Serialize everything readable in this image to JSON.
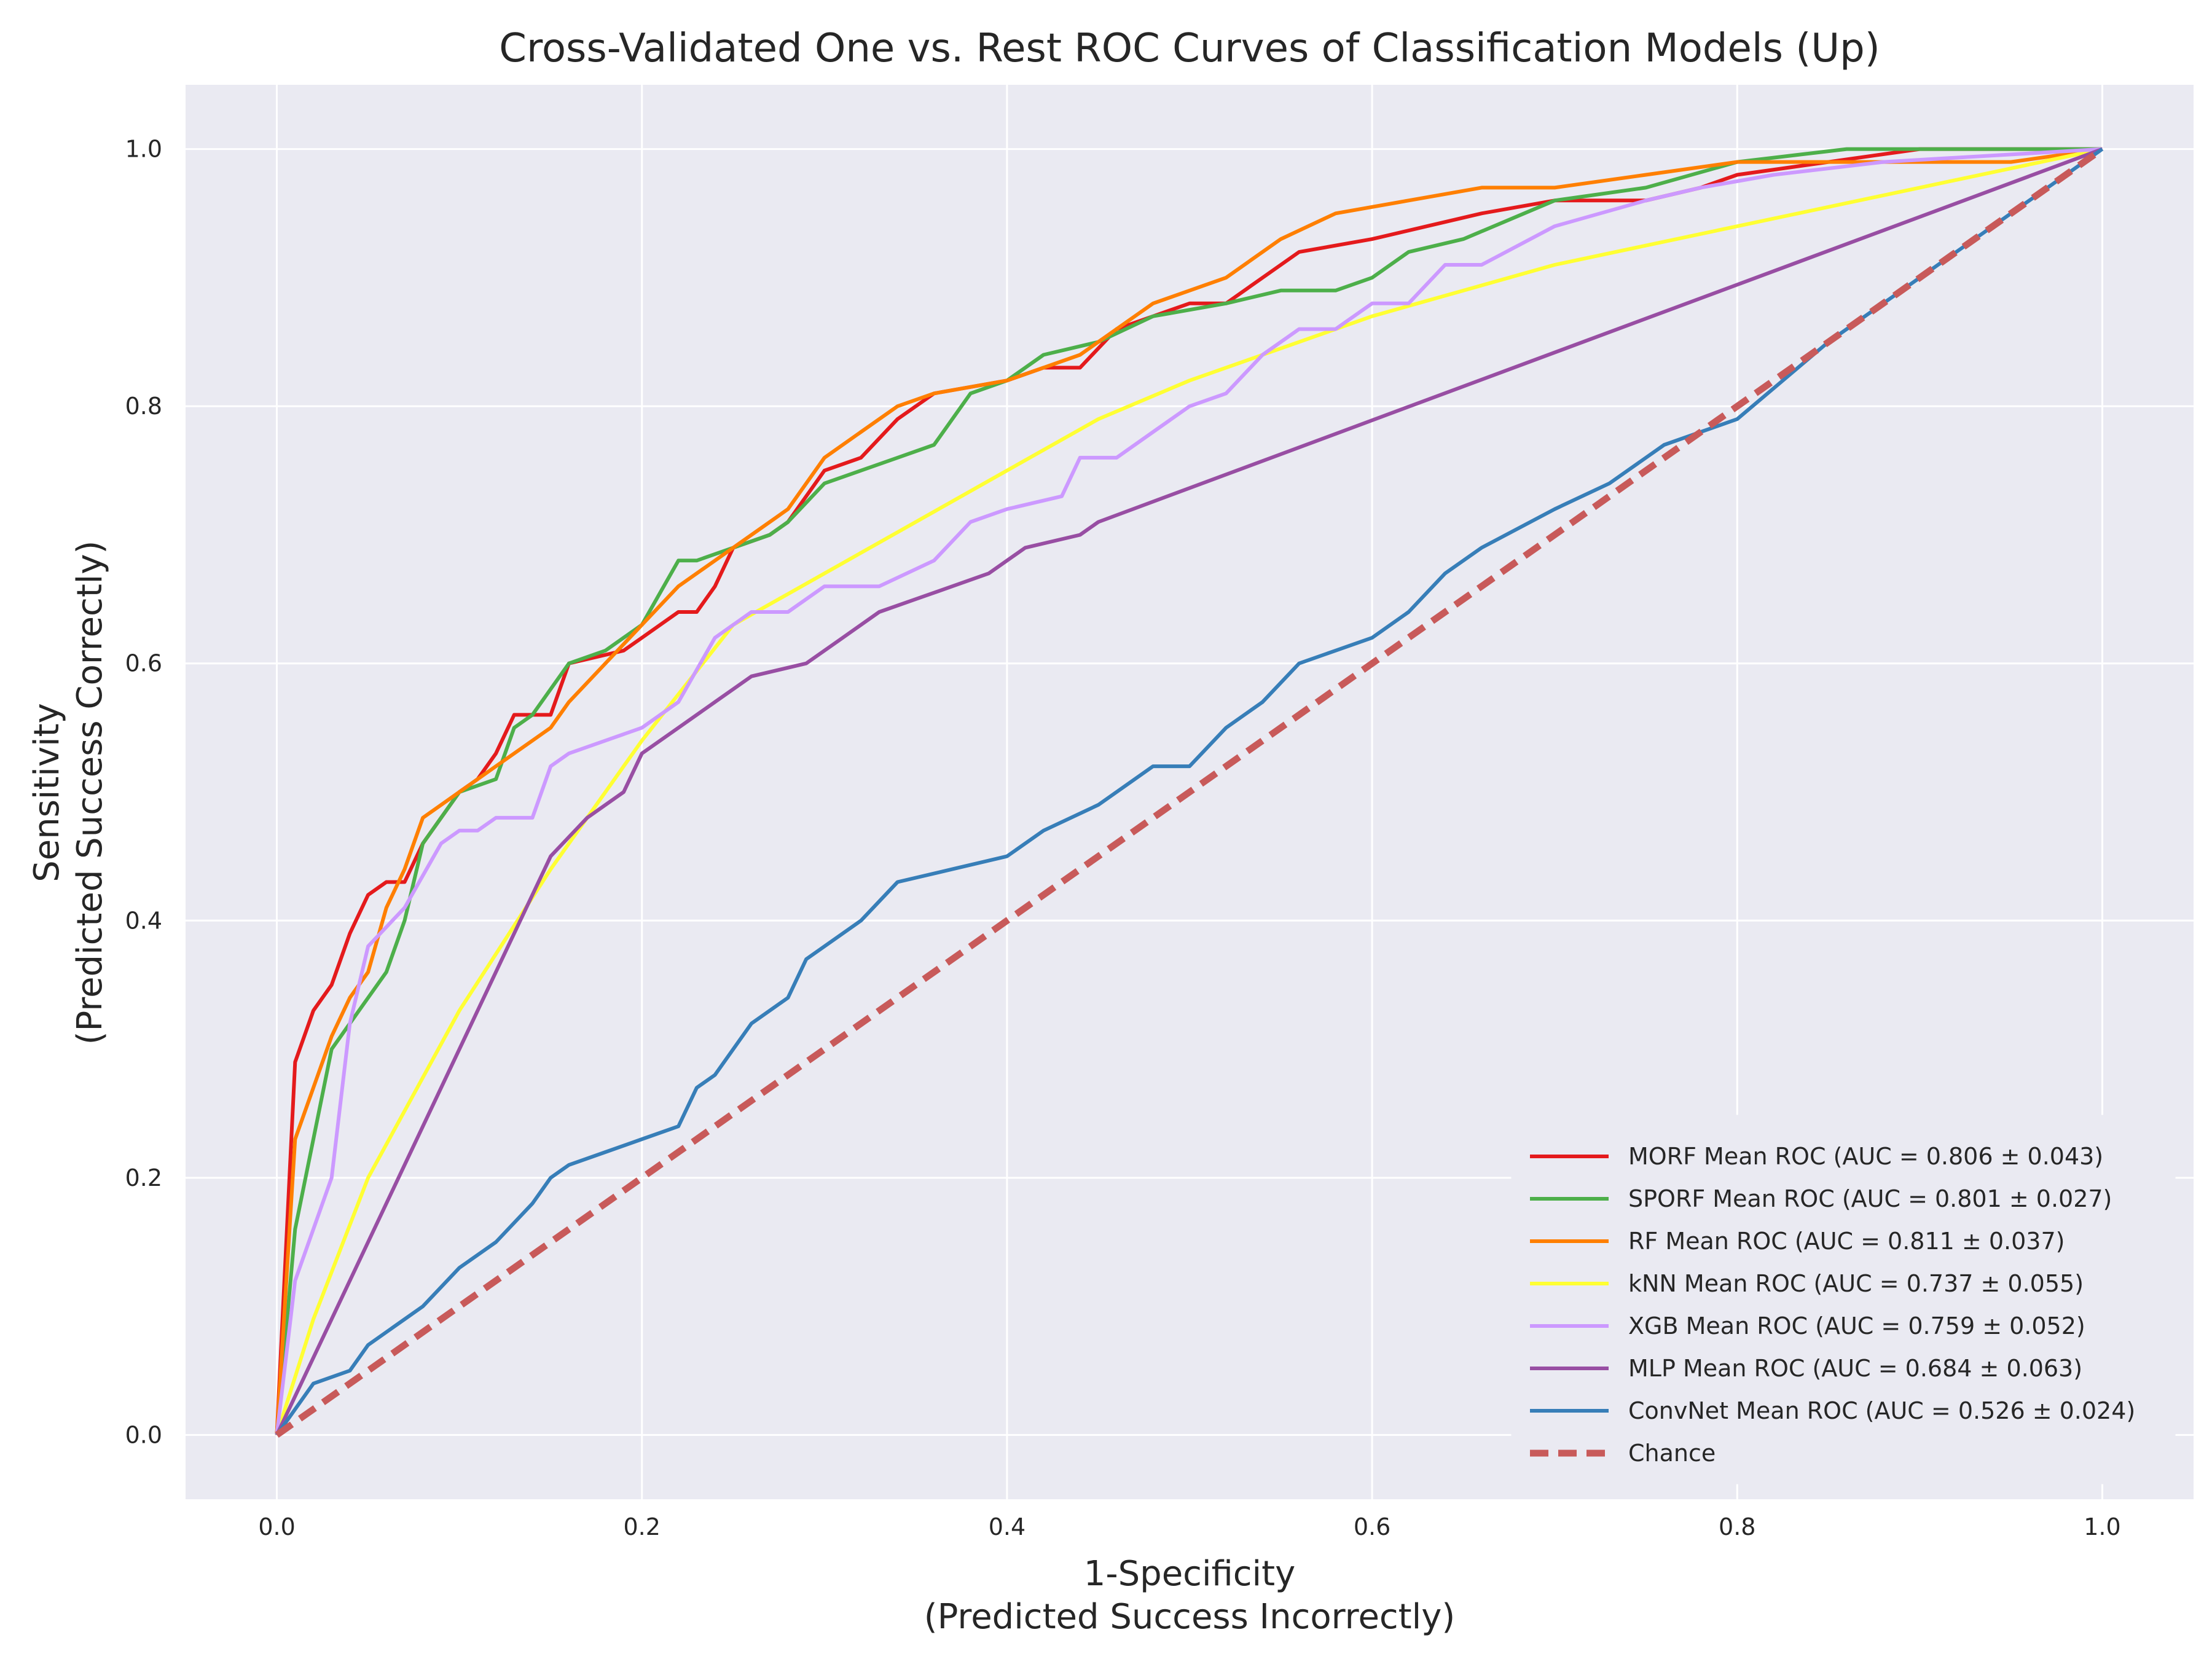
{
  "chart_data": {
    "type": "line",
    "title": "Cross-Validated One vs. Rest ROC Curves of Classification Models (Up)",
    "xlabel": [
      "1-Specificity",
      "(Predicted Success Incorrectly)"
    ],
    "ylabel": [
      "Sensitivity",
      "(Predicted Success Correctly)"
    ],
    "xlim": [
      -0.05,
      1.05
    ],
    "ylim": [
      -0.05,
      1.05
    ],
    "xticks": [
      "0.0",
      "0.2",
      "0.4",
      "0.6",
      "0.8",
      "1.0"
    ],
    "yticks": [
      "0.0",
      "0.2",
      "0.4",
      "0.6",
      "0.8",
      "1.0"
    ],
    "grid": true,
    "legend_position": "lower-right",
    "series": [
      {
        "name": "MORF Mean ROC (AUC = 0.806 ± 0.043)",
        "color": "#e41a1c",
        "x": [
          0,
          0.01,
          0.02,
          0.03,
          0.04,
          0.05,
          0.06,
          0.07,
          0.08,
          0.09,
          0.1,
          0.11,
          0.12,
          0.13,
          0.15,
          0.16,
          0.19,
          0.2,
          0.22,
          0.23,
          0.24,
          0.25,
          0.27,
          0.28,
          0.3,
          0.32,
          0.34,
          0.36,
          0.4,
          0.42,
          0.44,
          0.46,
          0.5,
          0.52,
          0.54,
          0.56,
          0.6,
          0.63,
          0.66,
          0.7,
          0.75,
          0.78,
          0.8,
          0.85,
          0.9,
          1.0
        ],
        "y": [
          0,
          0.29,
          0.33,
          0.35,
          0.39,
          0.42,
          0.43,
          0.43,
          0.46,
          0.48,
          0.5,
          0.51,
          0.53,
          0.56,
          0.56,
          0.6,
          0.61,
          0.62,
          0.64,
          0.64,
          0.66,
          0.69,
          0.7,
          0.71,
          0.75,
          0.76,
          0.79,
          0.81,
          0.82,
          0.83,
          0.83,
          0.86,
          0.88,
          0.88,
          0.9,
          0.92,
          0.93,
          0.94,
          0.95,
          0.96,
          0.96,
          0.97,
          0.98,
          0.99,
          1.0,
          1.0
        ]
      },
      {
        "name": "SPORF Mean ROC (AUC = 0.801 ± 0.027)",
        "color": "#4daf4a",
        "x": [
          0,
          0.01,
          0.02,
          0.03,
          0.05,
          0.06,
          0.07,
          0.08,
          0.09,
          0.1,
          0.12,
          0.13,
          0.14,
          0.16,
          0.18,
          0.2,
          0.22,
          0.23,
          0.25,
          0.27,
          0.28,
          0.3,
          0.32,
          0.34,
          0.36,
          0.38,
          0.4,
          0.42,
          0.45,
          0.48,
          0.52,
          0.55,
          0.58,
          0.6,
          0.62,
          0.65,
          0.7,
          0.75,
          0.8,
          0.86,
          1.0
        ],
        "y": [
          0,
          0.16,
          0.23,
          0.3,
          0.34,
          0.36,
          0.4,
          0.46,
          0.48,
          0.5,
          0.51,
          0.55,
          0.56,
          0.6,
          0.61,
          0.63,
          0.68,
          0.68,
          0.69,
          0.7,
          0.71,
          0.74,
          0.75,
          0.76,
          0.77,
          0.81,
          0.82,
          0.84,
          0.85,
          0.87,
          0.88,
          0.89,
          0.89,
          0.9,
          0.92,
          0.93,
          0.96,
          0.97,
          0.99,
          1.0,
          1.0
        ]
      },
      {
        "name": "RF Mean ROC (AUC = 0.811 ± 0.037)",
        "color": "#ff7f00",
        "x": [
          0,
          0.01,
          0.02,
          0.03,
          0.04,
          0.05,
          0.06,
          0.07,
          0.08,
          0.1,
          0.12,
          0.14,
          0.15,
          0.16,
          0.18,
          0.2,
          0.22,
          0.24,
          0.26,
          0.28,
          0.3,
          0.32,
          0.34,
          0.36,
          0.4,
          0.44,
          0.48,
          0.52,
          0.55,
          0.58,
          0.62,
          0.66,
          0.7,
          0.75,
          0.8,
          0.95,
          1.0
        ],
        "y": [
          0,
          0.23,
          0.27,
          0.31,
          0.34,
          0.36,
          0.41,
          0.44,
          0.48,
          0.5,
          0.52,
          0.54,
          0.55,
          0.57,
          0.6,
          0.63,
          0.66,
          0.68,
          0.7,
          0.72,
          0.76,
          0.78,
          0.8,
          0.81,
          0.82,
          0.84,
          0.88,
          0.9,
          0.93,
          0.95,
          0.96,
          0.97,
          0.97,
          0.98,
          0.99,
          0.99,
          1.0
        ]
      },
      {
        "name": "kNN Mean ROC (AUC = 0.737 ± 0.055)",
        "color": "#ffff33",
        "x": [
          0,
          0.02,
          0.05,
          0.1,
          0.15,
          0.2,
          0.25,
          0.3,
          0.35,
          0.4,
          0.45,
          0.5,
          0.6,
          0.7,
          0.8,
          0.9,
          1.0
        ],
        "y": [
          0,
          0.09,
          0.2,
          0.33,
          0.44,
          0.54,
          0.63,
          0.67,
          0.71,
          0.75,
          0.79,
          0.82,
          0.87,
          0.91,
          0.94,
          0.97,
          1.0
        ]
      },
      {
        "name": "XGB Mean ROC (AUC = 0.759 ± 0.052)",
        "color": "#cc99ff",
        "x": [
          0,
          0.01,
          0.03,
          0.04,
          0.05,
          0.07,
          0.09,
          0.1,
          0.11,
          0.12,
          0.14,
          0.15,
          0.16,
          0.18,
          0.2,
          0.22,
          0.24,
          0.25,
          0.26,
          0.28,
          0.3,
          0.33,
          0.36,
          0.38,
          0.4,
          0.43,
          0.44,
          0.46,
          0.48,
          0.5,
          0.52,
          0.54,
          0.56,
          0.58,
          0.6,
          0.62,
          0.64,
          0.66,
          0.7,
          0.75,
          0.78,
          0.82,
          0.88,
          1.0
        ],
        "y": [
          0,
          0.12,
          0.2,
          0.32,
          0.38,
          0.41,
          0.46,
          0.47,
          0.47,
          0.48,
          0.48,
          0.52,
          0.53,
          0.54,
          0.55,
          0.57,
          0.62,
          0.63,
          0.64,
          0.64,
          0.66,
          0.66,
          0.68,
          0.71,
          0.72,
          0.73,
          0.76,
          0.76,
          0.78,
          0.8,
          0.81,
          0.84,
          0.86,
          0.86,
          0.88,
          0.88,
          0.91,
          0.91,
          0.94,
          0.96,
          0.97,
          0.98,
          0.99,
          1.0
        ]
      },
      {
        "name": "MLP Mean ROC (AUC = 0.684 ± 0.063)",
        "color": "#984ea3",
        "x": [
          0,
          0.15,
          0.17,
          0.19,
          0.2,
          0.22,
          0.24,
          0.26,
          0.29,
          0.31,
          0.33,
          0.35,
          0.37,
          0.39,
          0.41,
          0.44,
          0.45,
          1.0
        ],
        "y": [
          0,
          0.45,
          0.48,
          0.5,
          0.53,
          0.55,
          0.57,
          0.59,
          0.6,
          0.62,
          0.64,
          0.65,
          0.66,
          0.67,
          0.69,
          0.7,
          0.71,
          1.0
        ]
      },
      {
        "name": "ConvNet Mean ROC (AUC = 0.526 ± 0.024)",
        "color": "#377eb8",
        "x": [
          0,
          0.01,
          0.02,
          0.04,
          0.05,
          0.07,
          0.08,
          0.1,
          0.12,
          0.14,
          0.15,
          0.16,
          0.18,
          0.2,
          0.22,
          0.23,
          0.24,
          0.26,
          0.28,
          0.29,
          0.32,
          0.34,
          0.37,
          0.4,
          0.42,
          0.45,
          0.48,
          0.5,
          0.52,
          0.54,
          0.56,
          0.58,
          0.6,
          0.62,
          0.64,
          0.66,
          0.7,
          0.73,
          0.76,
          0.8,
          0.85,
          0.9,
          1.0
        ],
        "y": [
          0,
          0.02,
          0.04,
          0.05,
          0.07,
          0.09,
          0.1,
          0.13,
          0.15,
          0.18,
          0.2,
          0.21,
          0.22,
          0.23,
          0.24,
          0.27,
          0.28,
          0.32,
          0.34,
          0.37,
          0.4,
          0.43,
          0.44,
          0.45,
          0.47,
          0.49,
          0.52,
          0.52,
          0.55,
          0.57,
          0.6,
          0.61,
          0.62,
          0.64,
          0.67,
          0.69,
          0.72,
          0.74,
          0.77,
          0.79,
          0.85,
          0.9,
          1.0
        ]
      },
      {
        "name": "Chance",
        "color": "#c85a5a",
        "dashed": true,
        "x": [
          0,
          1
        ],
        "y": [
          0,
          1
        ]
      }
    ]
  }
}
